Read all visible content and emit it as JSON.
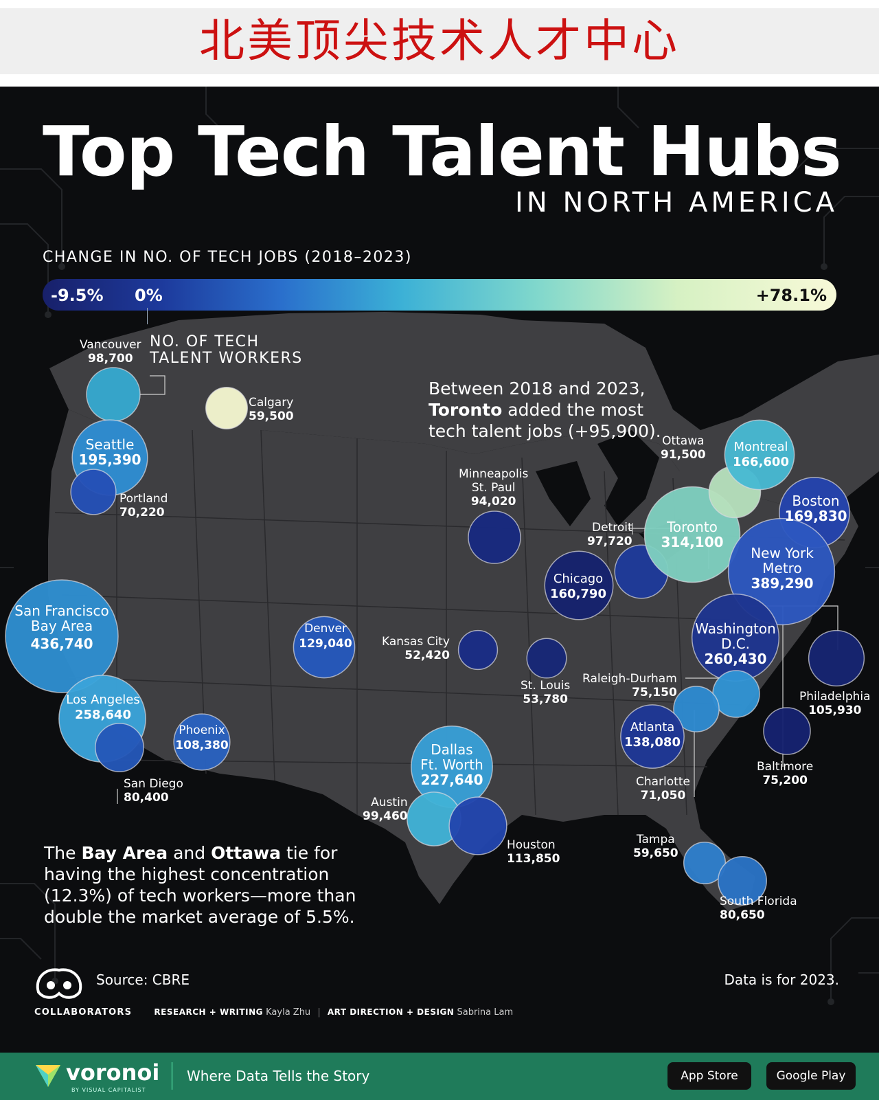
{
  "banner": {
    "title": "北美顶尖技术人才中心"
  },
  "poster": {
    "title": "Top Tech Talent Hubs",
    "subtitle": "IN NORTH AMERICA",
    "legend_title": "CHANGE IN NO. OF TECH JOBS (2018–2023)",
    "legend_min": "-9.5%",
    "legend_zero": "0%",
    "legend_max": "+78.1%",
    "size_key_line1": "NO. OF TECH",
    "size_key_line2": "TALENT WORKERS",
    "note_toronto": {
      "l1": "Between 2018 and 2023,",
      "l2_bold": "Toronto",
      "l2_rest": " added the most",
      "l3": "tech talent jobs (+95,900)."
    },
    "note_bay": {
      "l1_a": "The ",
      "l1_bold1": "Bay Area",
      "l1_b": " and ",
      "l1_bold2": "Ottawa",
      "l1_c": " tie for",
      "l2": "having the highest concentration",
      "l3": "(12.3%) of tech workers—more than",
      "l4": "double the market average of 5.5%."
    },
    "source": "Source: CBRE",
    "data_year": "Data is for 2023.",
    "credits": {
      "collab": "COLLABORATORS",
      "rw_label": "RESEARCH + WRITING",
      "rw_name": "Kayla Zhu",
      "ad_label": "ART DIRECTION + DESIGN",
      "ad_name": "Sabrina Lam"
    }
  },
  "footer": {
    "brand": "voronoi",
    "by": "BY VISUAL CAPITALIST",
    "tagline": "Where Data Tells the Story",
    "app_store": "App Store",
    "google_play": "Google Play"
  },
  "colors": {
    "background": "#0c0d0f",
    "land": "#3f3f42",
    "footer": "#1f7b5a",
    "banner_text": "#cc1111"
  },
  "map_data": {
    "encoding": {
      "size": "No. of tech talent workers (2023)",
      "color": "Change in no. of tech jobs 2018–2023"
    },
    "hubs": [
      {
        "id": "vancouver",
        "name": "Vancouver",
        "value": "98,700",
        "workers": 98700,
        "color": "#36a9cf"
      },
      {
        "id": "calgary",
        "name": "Calgary",
        "value": "59,500",
        "workers": 59500,
        "color": "#f4f6cf"
      },
      {
        "id": "seattle",
        "name": "Seattle",
        "value": "195,390",
        "workers": 195390,
        "color": "#2f8ed2"
      },
      {
        "id": "portland",
        "name": "Portland",
        "value": "70,220",
        "workers": 70220,
        "color": "#2450b6"
      },
      {
        "id": "sf",
        "name": "San Francisco Bay Area",
        "value": "436,740",
        "workers": 436740,
        "color": "#2f8fd0"
      },
      {
        "id": "la",
        "name": "Los Angeles",
        "value": "258,640",
        "workers": 258640,
        "color": "#3aa3da"
      },
      {
        "id": "sandiego",
        "name": "San Diego",
        "value": "80,400",
        "workers": 80400,
        "color": "#2457b8"
      },
      {
        "id": "phoenix",
        "name": "Phoenix",
        "value": "108,380",
        "workers": 108380,
        "color": "#2a62c0"
      },
      {
        "id": "denver",
        "name": "Denver",
        "value": "129,040",
        "workers": 129040,
        "color": "#2558bc"
      },
      {
        "id": "kc",
        "name": "Kansas City",
        "value": "52,420",
        "workers": 52420,
        "color": "#1a2d86"
      },
      {
        "id": "minneapolis",
        "name": "Minneapolis St. Paul",
        "value": "94,020",
        "workers": 94020,
        "color": "#182a80"
      },
      {
        "id": "stlouis",
        "name": "St. Louis",
        "value": "53,780",
        "workers": 53780,
        "color": "#172878"
      },
      {
        "id": "chicago",
        "name": "Chicago",
        "value": "160,790",
        "workers": 160790,
        "color": "#16226e"
      },
      {
        "id": "detroit",
        "name": "Detroit",
        "value": "97,720",
        "workers": 97720,
        "color": "#1e3a9a"
      },
      {
        "id": "toronto",
        "name": "Toronto",
        "value": "314,100",
        "workers": 314100,
        "color": "#7fcfbf"
      },
      {
        "id": "ottawa",
        "name": "Ottawa",
        "value": "91,500",
        "workers": 91500,
        "color": "#b6e0bc"
      },
      {
        "id": "montreal",
        "name": "Montreal",
        "value": "166,600",
        "workers": 166600,
        "color": "#48b9d2"
      },
      {
        "id": "boston",
        "name": "Boston",
        "value": "169,830",
        "workers": 169830,
        "color": "#2444ae"
      },
      {
        "id": "nyc",
        "name": "New York Metro",
        "value": "389,290",
        "workers": 389290,
        "color": "#2d57c0"
      },
      {
        "id": "dc",
        "name": "Washington D.C.",
        "value": "260,430",
        "workers": 260430,
        "color": "#1e3590"
      },
      {
        "id": "philly",
        "name": "Philadelphia",
        "value": "105,930",
        "workers": 105930,
        "color": "#172572"
      },
      {
        "id": "baltimore",
        "name": "Baltimore",
        "value": "75,200",
        "workers": 75200,
        "color": "#162270"
      },
      {
        "id": "raleigh",
        "name": "Raleigh-Durham",
        "value": "75,150",
        "workers": 75150,
        "color": "#3194d4"
      },
      {
        "id": "charlotte",
        "name": "Charlotte",
        "value": "71,050",
        "workers": 71050,
        "color": "#2e8ad0"
      },
      {
        "id": "atlanta",
        "name": "Atlanta",
        "value": "138,080",
        "workers": 138080,
        "color": "#1e3796"
      },
      {
        "id": "dallas",
        "name": "Dallas Ft. Worth",
        "value": "227,640",
        "workers": 227640,
        "color": "#389fd6"
      },
      {
        "id": "austin",
        "name": "Austin",
        "value": "99,460",
        "workers": 99460,
        "color": "#41b2d6"
      },
      {
        "id": "houston",
        "name": "Houston",
        "value": "113,850",
        "workers": 113850,
        "color": "#2246ae"
      },
      {
        "id": "tampa",
        "name": "Tampa",
        "value": "59,650",
        "workers": 59650,
        "color": "#2f7fcc"
      },
      {
        "id": "southflorida",
        "name": "South Florida",
        "value": "80,650",
        "workers": 80650,
        "color": "#2b74c6"
      }
    ]
  }
}
